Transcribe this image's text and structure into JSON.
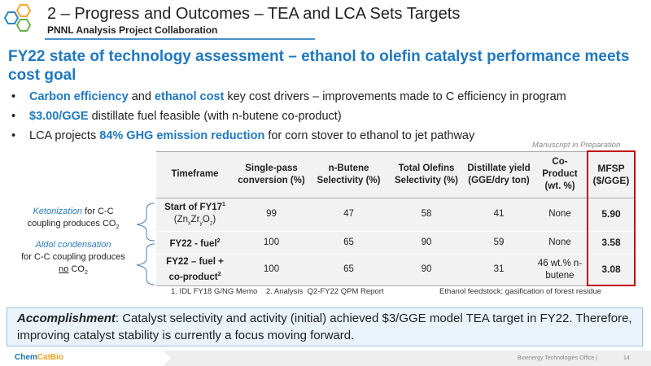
{
  "header": {
    "title": "2 – Progress and Outcomes – TEA and LCA Sets Targets",
    "subtitle": "PNNL Analysis Project Collaboration"
  },
  "headline": "FY22 state of technology assessment – ethanol to olefin catalyst performance meets cost goal",
  "bullets": [
    {
      "h1": "Carbon efficiency",
      "t1": " and ",
      "h2": "ethanol cost",
      "t2": " key cost drivers – improvements made to C efficiency in program"
    },
    {
      "h1": "$3.00/GGE",
      "t1": " distillate fuel feasible (with n-butene co-product)"
    },
    {
      "t0": "LCA projects ",
      "h1": "84% GHG emission reduction",
      "t1": " for corn stover to ethanol to jet pathway"
    }
  ],
  "manuscript": "Manuscript in Preparation",
  "table": {
    "headers": [
      "Timeframe",
      "Single-pass conversion (%)",
      "n-Butene Selectivity (%)",
      "Total Olefins Selectivity (%)",
      "Distillate yield (GGE/dry ton)",
      "Co-Product (wt. %)",
      "MFSP ($/GGE)"
    ],
    "rows": [
      {
        "timeframe": "Start of FY17",
        "sup": "1",
        "formula": "(ZnxZryOz)",
        "conv": "99",
        "butene": "47",
        "olefins": "58",
        "distillate": "41",
        "coproduct": "None",
        "mfsp": "5.90"
      },
      {
        "timeframe": "FY22 - fuel",
        "sup": "2",
        "conv": "100",
        "butene": "65",
        "olefins": "90",
        "distillate": "59",
        "coproduct": "None",
        "mfsp": "3.58"
      },
      {
        "timeframe": "FY22 – fuel + co-product",
        "sup": "2",
        "conv": "100",
        "butene": "65",
        "olefins": "90",
        "distillate": "31",
        "coproduct": "46 wt.% n-butene",
        "mfsp": "3.08"
      }
    ]
  },
  "footnotes": "1. IDL FY18 G/NG Memo    2. Analysis  Q2-FY22 QPM Report",
  "feedstock": "Ethanol feedstock:  gasification of forest residue",
  "side": {
    "k_it": "Ketonization",
    "k_rest": " for C-C coupling produces CO",
    "a_it": "Aldol condensation",
    "a_rest1": "for C-C coupling produces ",
    "a_no": "no",
    "a_rest2": " CO"
  },
  "accomplishment": {
    "label": "Accomplishment",
    "text": ":  Catalyst selectivity and activity (initial) achieved $3/GGE model TEA target in FY22.  Therefore, improving catalyst stability is currently a focus moving forward."
  },
  "footer": {
    "brand1": "Chem",
    "brand2": "CatBio",
    "office": "Bioenergy Technologies Office  |",
    "page": "14"
  }
}
